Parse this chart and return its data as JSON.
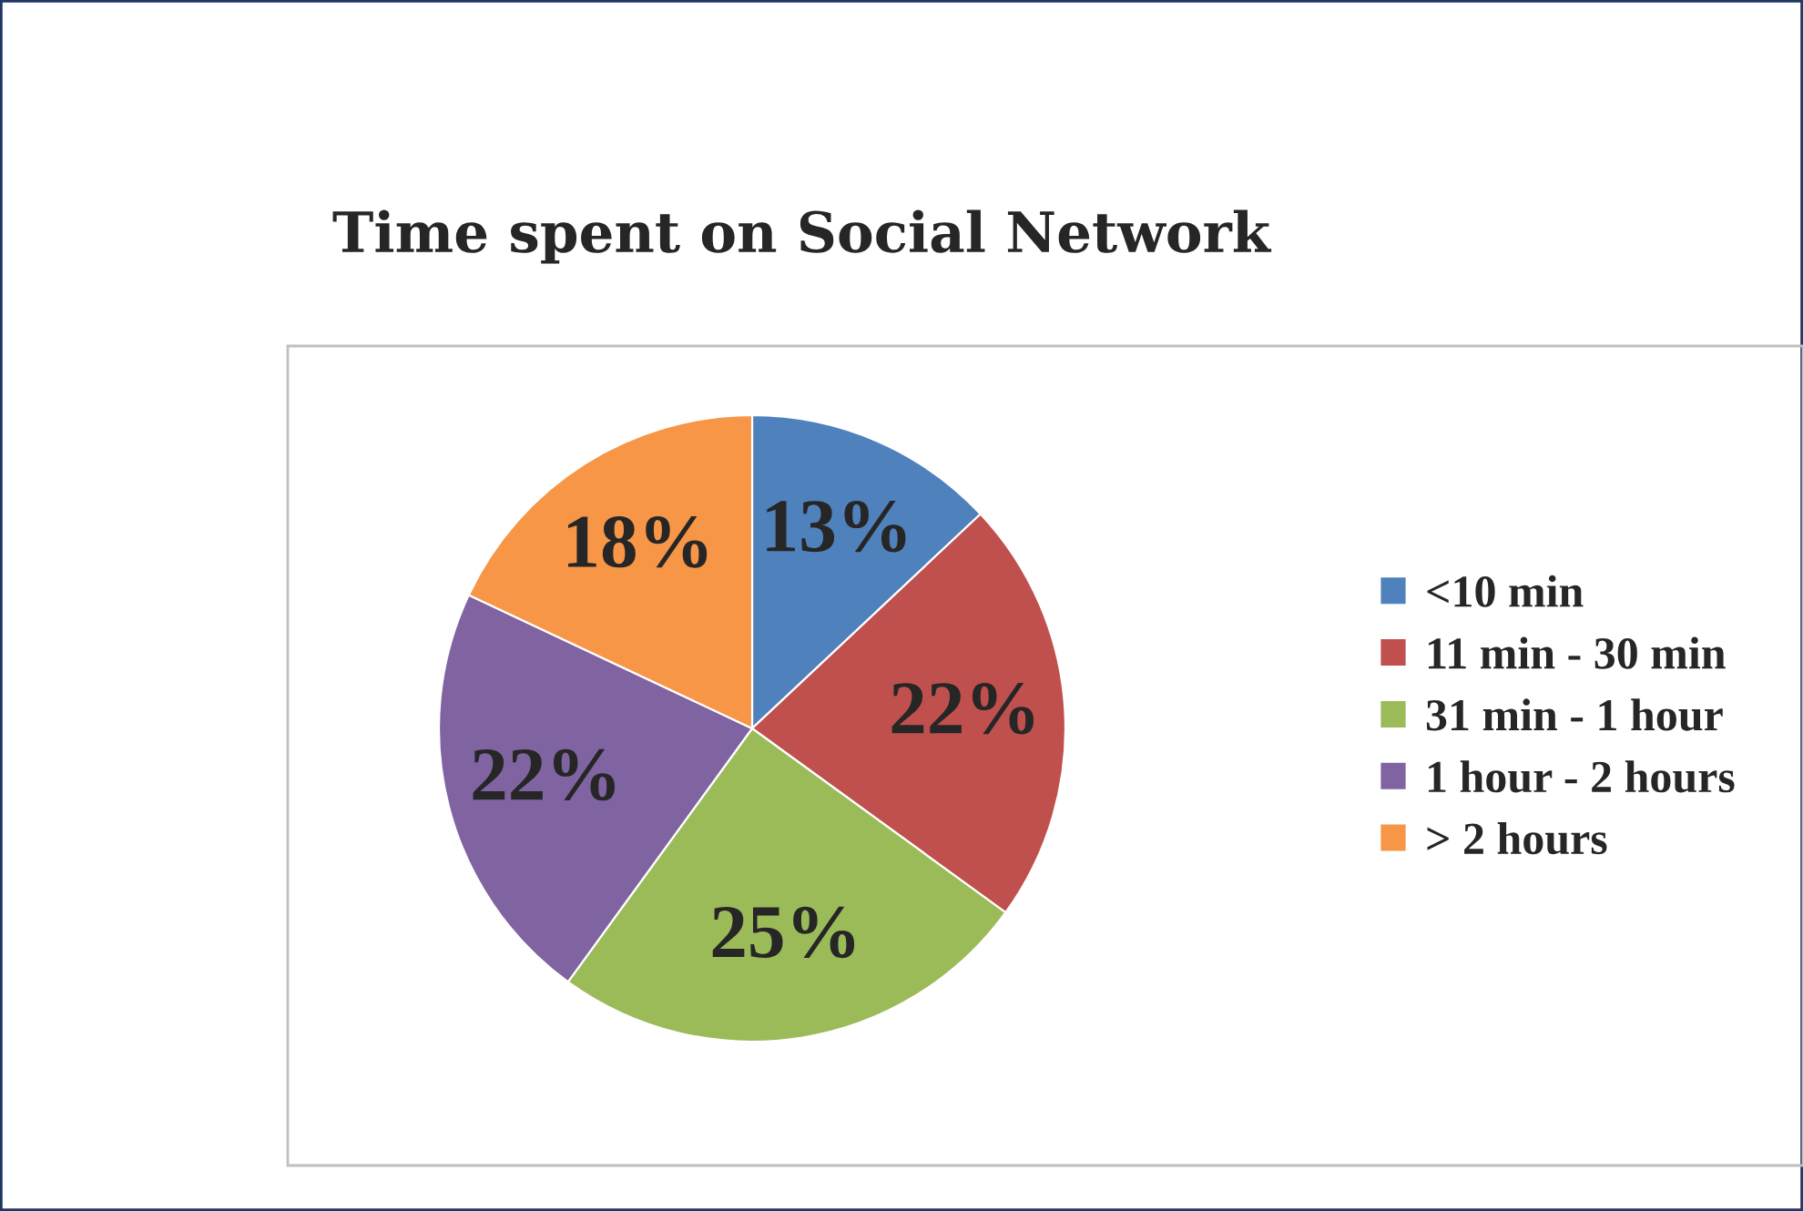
{
  "chart_data": {
    "type": "pie",
    "title": "Time spent on Social Network",
    "categories": [
      "<10 min",
      "11 min - 30 min",
      "31 min - 1 hour",
      "1 hour - 2 hours",
      "> 2 hours"
    ],
    "values": [
      13,
      22,
      25,
      22,
      18
    ],
    "colors": [
      "#4f81bd",
      "#c0504d",
      "#9bbb59",
      "#8064a2",
      "#f79646"
    ],
    "value_labels": [
      "13%",
      "22%",
      "25%",
      "22%",
      "18%"
    ],
    "legend": "right"
  }
}
